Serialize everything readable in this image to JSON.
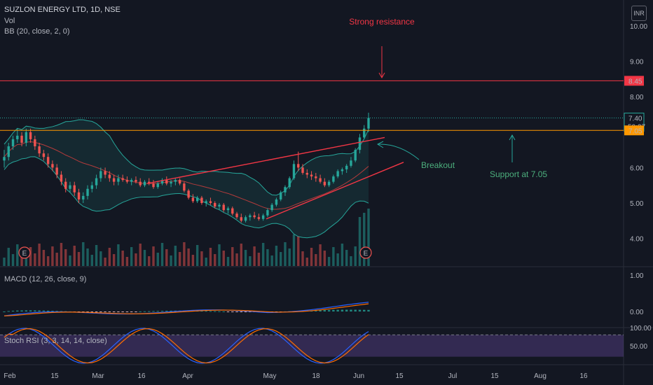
{
  "header": {
    "symbol": "SUZLON ENERGY LTD, 1D, NSE",
    "vol_label": "Vol",
    "bb_label": "BB (20, close, 2, 0)",
    "currency": "INR"
  },
  "panes": {
    "macd_label": "MACD (12, 26, close, 9)",
    "stoch_label": "Stoch RSI (3, 3, 14, 14, close)"
  },
  "price_axis": {
    "ticks": [
      "10.00",
      "9.00",
      "8.00",
      "7.00",
      "6.00",
      "5.00",
      "4.00"
    ],
    "markers": [
      {
        "value": 8.45,
        "label": "8.45",
        "color": "#f23645",
        "text_color": "#ffffff"
      },
      {
        "value": 7.4,
        "label": "7.40",
        "sublabel": "50:27",
        "color": "#131722",
        "text_color": "#ffffff"
      },
      {
        "value": 7.05,
        "label": "7.05",
        "color": "#ff9800",
        "text_color": "#131722"
      }
    ]
  },
  "macd_axis": {
    "ticks": [
      "1.00",
      "0.00"
    ]
  },
  "stoch_axis": {
    "ticks": [
      "100.00",
      "50.00"
    ]
  },
  "time_axis": [
    "Feb",
    "15",
    "Mar",
    "16",
    "Apr",
    "May",
    "18",
    "Jun",
    "15",
    "Jul",
    "15",
    "Aug",
    "16"
  ],
  "annotations": {
    "strong_resistance": "Strong resistance",
    "breakout": "Breakout",
    "support": "Support at 7.05",
    "earnings_marker": "E"
  },
  "chart_data": {
    "type": "candlestick",
    "price_levels": {
      "resistance": 8.45,
      "support": 7.05,
      "last": 7.4
    },
    "ohlc_approx": [
      [
        6.2,
        6.5,
        6.0,
        6.3
      ],
      [
        6.3,
        6.7,
        6.2,
        6.6
      ],
      [
        6.6,
        6.9,
        6.5,
        6.8
      ],
      [
        6.8,
        7.1,
        6.7,
        6.9
      ],
      [
        6.9,
        7.0,
        6.6,
        6.7
      ],
      [
        6.7,
        7.1,
        6.6,
        7.0
      ],
      [
        7.0,
        7.1,
        6.7,
        6.8
      ],
      [
        6.8,
        6.9,
        6.5,
        6.6
      ],
      [
        6.6,
        6.7,
        6.3,
        6.4
      ],
      [
        6.4,
        6.5,
        6.2,
        6.3
      ],
      [
        6.3,
        6.4,
        6.0,
        6.1
      ],
      [
        6.1,
        6.2,
        5.9,
        6.0
      ],
      [
        6.0,
        6.1,
        5.7,
        5.8
      ],
      [
        5.8,
        5.9,
        5.5,
        5.6
      ],
      [
        5.6,
        5.7,
        5.3,
        5.4
      ],
      [
        5.4,
        5.6,
        5.3,
        5.5
      ],
      [
        5.5,
        5.6,
        5.2,
        5.3
      ],
      [
        5.3,
        5.4,
        5.0,
        5.1
      ],
      [
        5.1,
        5.3,
        5.0,
        5.2
      ],
      [
        5.2,
        5.5,
        5.1,
        5.4
      ],
      [
        5.4,
        5.6,
        5.3,
        5.5
      ],
      [
        5.5,
        5.8,
        5.4,
        5.7
      ],
      [
        5.7,
        6.0,
        5.6,
        5.9
      ],
      [
        5.9,
        6.0,
        5.7,
        5.8
      ],
      [
        5.8,
        5.9,
        5.6,
        5.7
      ],
      [
        5.7,
        5.8,
        5.5,
        5.6
      ],
      [
        5.6,
        5.8,
        5.5,
        5.7
      ],
      [
        5.7,
        5.8,
        5.6,
        5.65
      ],
      [
        5.65,
        5.75,
        5.55,
        5.6
      ],
      [
        5.6,
        5.7,
        5.5,
        5.65
      ],
      [
        5.65,
        5.75,
        5.55,
        5.6
      ],
      [
        5.6,
        5.7,
        5.45,
        5.5
      ],
      [
        5.5,
        5.65,
        5.45,
        5.6
      ],
      [
        5.6,
        5.7,
        5.5,
        5.55
      ],
      [
        5.55,
        5.65,
        5.4,
        5.45
      ],
      [
        5.45,
        5.6,
        5.4,
        5.55
      ],
      [
        5.55,
        5.7,
        5.5,
        5.65
      ],
      [
        5.65,
        5.75,
        5.5,
        5.55
      ],
      [
        5.55,
        5.65,
        5.45,
        5.6
      ],
      [
        5.6,
        5.7,
        5.5,
        5.65
      ],
      [
        5.65,
        5.7,
        5.5,
        5.55
      ],
      [
        5.55,
        5.6,
        5.3,
        5.35
      ],
      [
        5.35,
        5.4,
        5.1,
        5.15
      ],
      [
        5.15,
        5.25,
        5.0,
        5.05
      ],
      [
        5.05,
        5.2,
        5.0,
        5.15
      ],
      [
        5.15,
        5.2,
        4.95,
        5.0
      ],
      [
        5.0,
        5.1,
        4.9,
        5.05
      ],
      [
        5.05,
        5.15,
        4.95,
        5.0
      ],
      [
        5.0,
        5.05,
        4.85,
        4.9
      ],
      [
        4.9,
        5.0,
        4.8,
        4.95
      ],
      [
        4.95,
        5.0,
        4.75,
        4.8
      ],
      [
        4.8,
        4.9,
        4.7,
        4.85
      ],
      [
        4.85,
        4.9,
        4.65,
        4.7
      ],
      [
        4.7,
        4.75,
        4.55,
        4.6
      ],
      [
        4.6,
        4.7,
        4.45,
        4.5
      ],
      [
        4.5,
        4.65,
        4.45,
        4.6
      ],
      [
        4.6,
        4.7,
        4.5,
        4.65
      ],
      [
        4.65,
        4.75,
        4.55,
        4.6
      ],
      [
        4.6,
        4.7,
        4.5,
        4.55
      ],
      [
        4.55,
        4.7,
        4.5,
        4.65
      ],
      [
        4.65,
        4.85,
        4.6,
        4.8
      ],
      [
        4.8,
        5.0,
        4.75,
        4.95
      ],
      [
        4.95,
        5.15,
        4.9,
        5.1
      ],
      [
        5.1,
        5.35,
        5.05,
        5.3
      ],
      [
        5.3,
        5.5,
        5.2,
        5.45
      ],
      [
        5.45,
        5.75,
        5.4,
        5.7
      ],
      [
        5.7,
        6.2,
        5.65,
        6.1
      ],
      [
        6.1,
        6.45,
        5.9,
        6.0
      ],
      [
        6.0,
        6.1,
        5.8,
        5.85
      ],
      [
        5.85,
        5.95,
        5.7,
        5.8
      ],
      [
        5.8,
        5.9,
        5.65,
        5.75
      ],
      [
        5.75,
        5.85,
        5.6,
        5.7
      ],
      [
        5.7,
        5.8,
        5.55,
        5.6
      ],
      [
        5.6,
        5.7,
        5.45,
        5.5
      ],
      [
        5.5,
        5.65,
        5.45,
        5.6
      ],
      [
        5.6,
        5.8,
        5.55,
        5.75
      ],
      [
        5.75,
        5.95,
        5.7,
        5.9
      ],
      [
        5.9,
        6.0,
        5.8,
        5.95
      ],
      [
        5.95,
        6.1,
        5.85,
        6.05
      ],
      [
        6.05,
        6.3,
        6.0,
        6.2
      ],
      [
        6.2,
        6.55,
        6.15,
        6.5
      ],
      [
        6.5,
        6.95,
        6.4,
        6.85
      ],
      [
        6.85,
        7.2,
        6.8,
        7.1
      ],
      [
        7.1,
        7.55,
        7.0,
        7.4
      ]
    ]
  }
}
